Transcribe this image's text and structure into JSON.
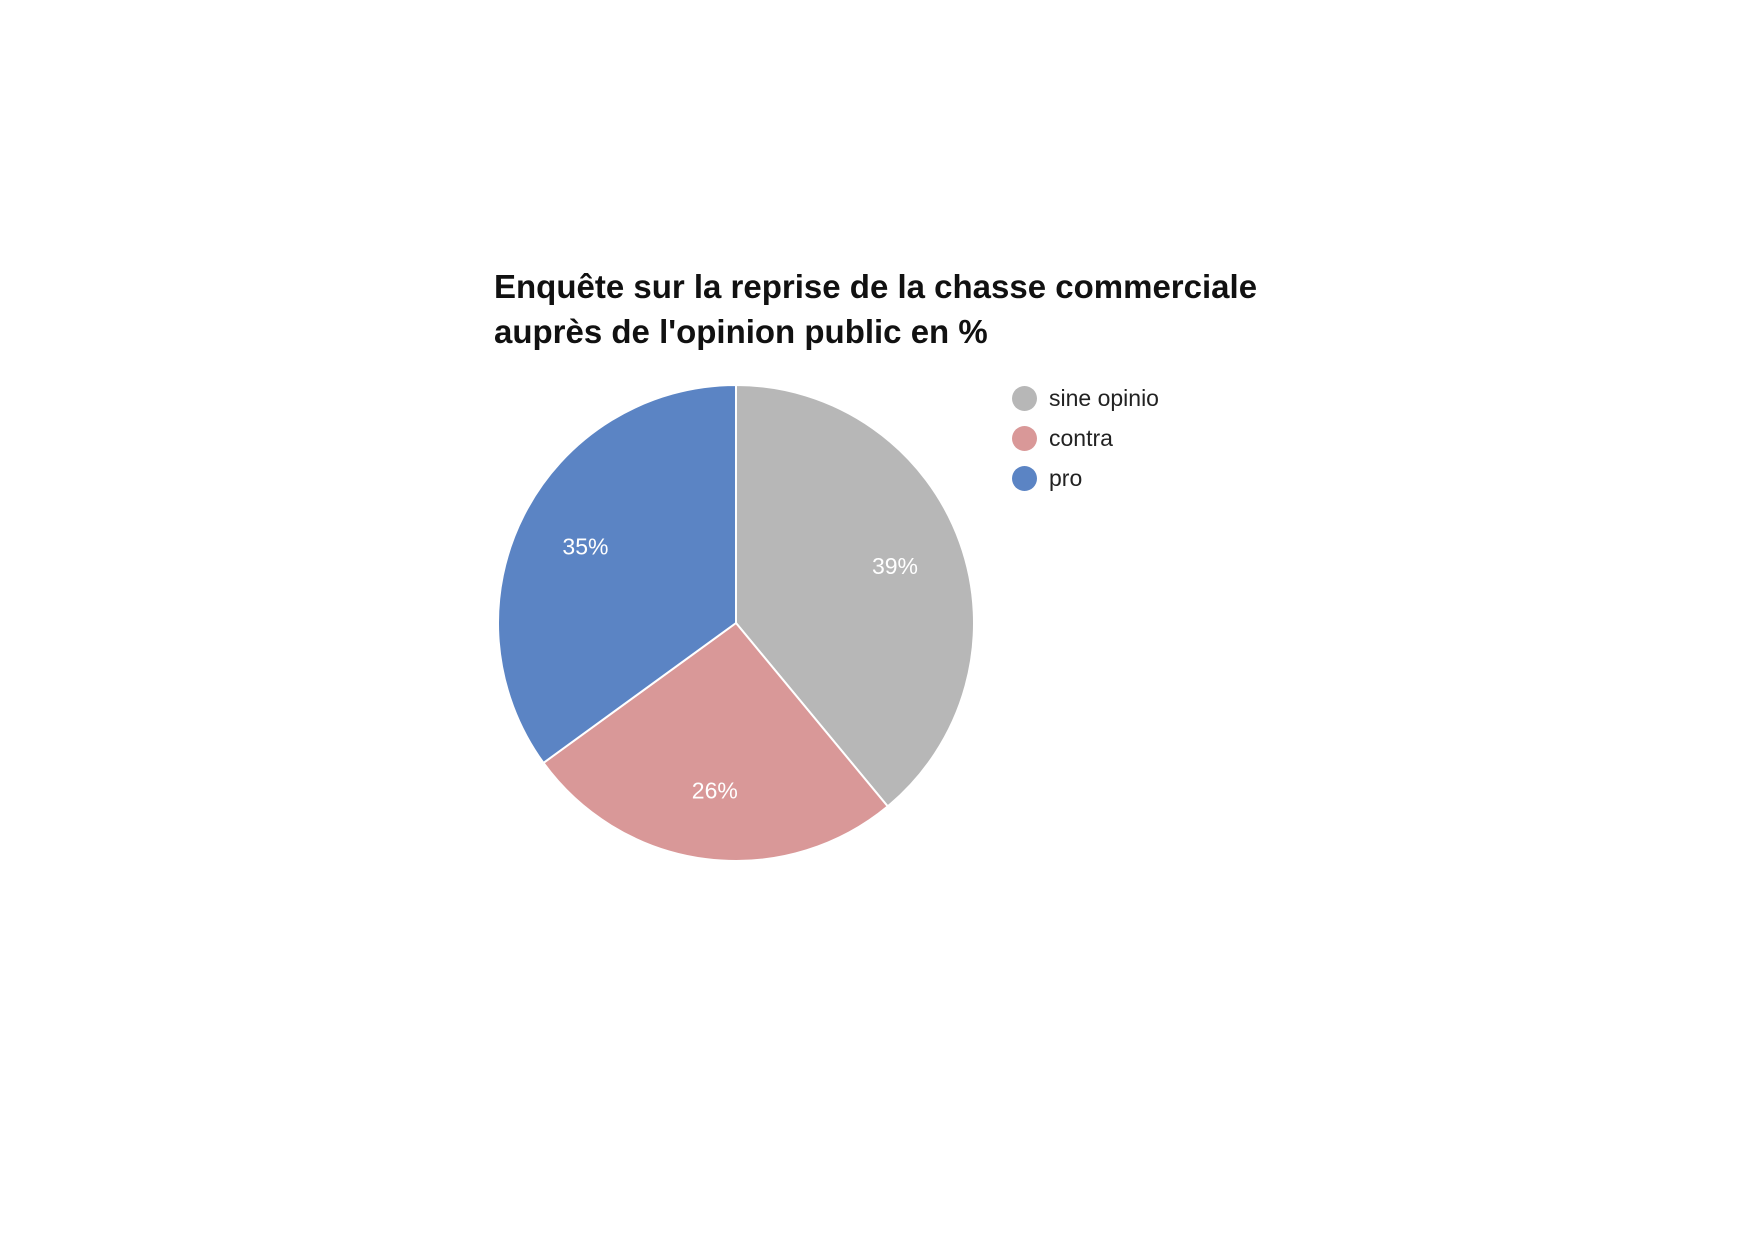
{
  "chart_data": {
    "type": "pie",
    "title_lines": [
      "Enquête sur la reprise de la chasse commerciale",
      "auprès de l'opinion public en %"
    ],
    "slices": [
      {
        "name": "sine opinio",
        "value": 39,
        "label": "39%",
        "color": "#b7b7b7"
      },
      {
        "name": "contra",
        "value": 26,
        "label": "26%",
        "color": "#d99898"
      },
      {
        "name": "pro",
        "value": 35,
        "label": "35%",
        "color": "#5b84c4"
      }
    ],
    "legend_position": "right",
    "start_angle_note": "clockwise from 12 o'clock"
  }
}
